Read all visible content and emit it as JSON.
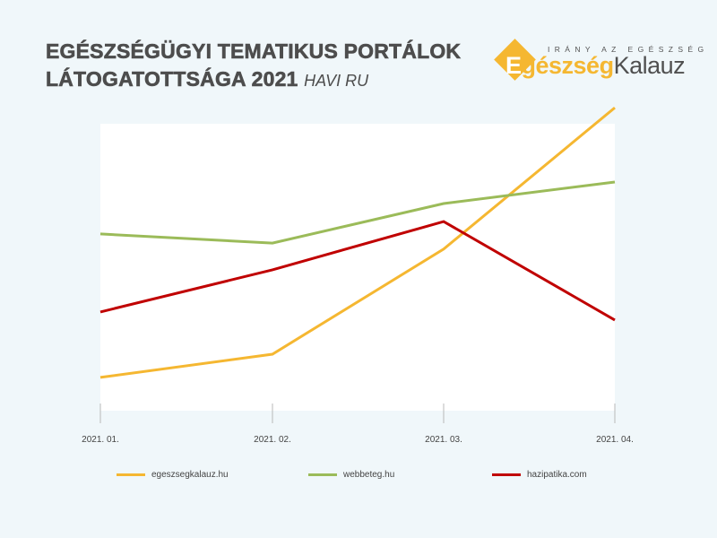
{
  "header": {
    "title_line1": "EGÉSZSÉGÜGYI TEMATIKUS PORTÁLOK",
    "title_line2": "LÁTOGATOTTSÁGA 2021",
    "title_suffix": "HAVI RU"
  },
  "logo": {
    "tagline": "IRÁNY AZ EGÉSZSÉG",
    "brand_first_letter": "E",
    "brand_part1_rest": "gészség",
    "brand_part2": "Kalauz",
    "accent_color": "#f5b731"
  },
  "axis": {
    "ticks": [
      "2021. 01.",
      "2021. 02.",
      "2021. 03.",
      "2021. 04."
    ]
  },
  "legend": [
    {
      "label": "egeszsegkalauz.hu",
      "color": "#f5b731"
    },
    {
      "label": "webbeteg.hu",
      "color": "#9bbb59"
    },
    {
      "label": "hazipatika.com",
      "color": "#c00000"
    }
  ],
  "chart_data": {
    "type": "line",
    "title": "EGÉSZSÉGÜGYI TEMATIKUS PORTÁLOK LÁTOGATOTTSÁGA 2021 HAVI RU",
    "subtitle": "HAVI RU",
    "xlabel": "",
    "ylabel": "",
    "categories": [
      "2021. 01.",
      "2021. 02.",
      "2021. 03.",
      "2021. 04."
    ],
    "series": [
      {
        "name": "egeszsegkalauz.hu",
        "color": "#f5b731",
        "values": [
          11.6,
          19.7,
          56.3,
          105.6
        ]
      },
      {
        "name": "webbeteg.hu",
        "color": "#9bbb59",
        "values": [
          61.6,
          58.4,
          72.2,
          79.7
        ]
      },
      {
        "name": "hazipatika.com",
        "color": "#c00000",
        "values": [
          34.4,
          49.1,
          65.9,
          31.6
        ]
      }
    ],
    "ylim": [
      0,
      100
    ],
    "y_axis_visible": false,
    "value_note": "relative scale (no y-axis shown); 0 = plot bottom, 100 = plot top",
    "grid": false,
    "legend_position": "bottom"
  }
}
